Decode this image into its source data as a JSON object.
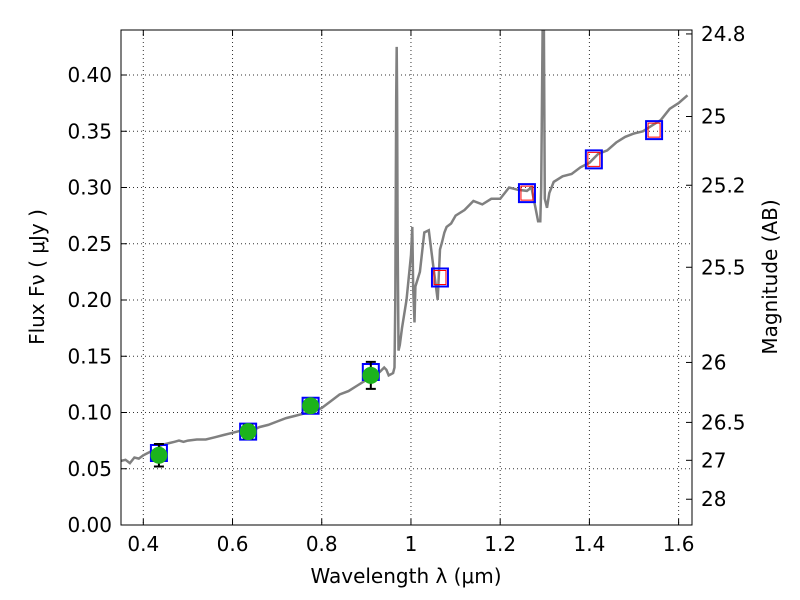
{
  "chart_data": {
    "type": "line",
    "title": "",
    "xlabel": "Wavelength  λ (μm)",
    "ylabel": "Flux  Fν  ( μJy )",
    "ylabel_right": "Magnitude (AB)",
    "xlim": [
      0.35,
      1.63
    ],
    "ylim": [
      0.0,
      0.44
    ],
    "grid": true,
    "x_ticks": [
      0.4,
      0.6,
      0.8,
      1.0,
      1.2,
      1.4,
      1.6
    ],
    "x_tick_labels": [
      "0.4",
      "0.6",
      "0.8",
      "1",
      "1.2",
      "1.4",
      "1.6"
    ],
    "y_ticks": [
      0.0,
      0.05,
      0.1,
      0.15,
      0.2,
      0.25,
      0.3,
      0.35,
      0.4
    ],
    "y_tick_labels": [
      "0.00",
      "0.05",
      "0.10",
      "0.15",
      "0.20",
      "0.25",
      "0.30",
      "0.35",
      "0.40"
    ],
    "right_ticks": [
      {
        "mag": "24.8",
        "flux": 0.4365
      },
      {
        "mag": "25",
        "flux": 0.3631
      },
      {
        "mag": "25.2",
        "flux": 0.302
      },
      {
        "mag": "25.5",
        "flux": 0.2291
      },
      {
        "mag": "26",
        "flux": 0.1445
      },
      {
        "mag": "26.5",
        "flux": 0.0912
      },
      {
        "mag": "27",
        "flux": 0.0575
      },
      {
        "mag": "28",
        "flux": 0.0229
      }
    ],
    "series": [
      {
        "kind": "model_spectrum",
        "color": "#808080",
        "x": [
          0.35,
          0.36,
          0.37,
          0.38,
          0.39,
          0.4,
          0.41,
          0.42,
          0.43,
          0.44,
          0.45,
          0.46,
          0.47,
          0.48,
          0.49,
          0.5,
          0.52,
          0.54,
          0.56,
          0.58,
          0.6,
          0.62,
          0.64,
          0.66,
          0.68,
          0.7,
          0.72,
          0.74,
          0.76,
          0.78,
          0.8,
          0.82,
          0.84,
          0.86,
          0.88,
          0.9,
          0.91,
          0.92,
          0.93,
          0.94,
          0.945,
          0.95,
          0.955,
          0.96,
          0.963,
          0.965,
          0.966,
          0.967,
          0.968,
          0.969,
          0.97,
          0.972,
          0.975,
          0.98,
          0.99,
          1.0,
          1.003,
          1.005,
          1.008,
          1.01,
          1.02,
          1.03,
          1.04,
          1.05,
          1.06,
          1.065,
          1.07,
          1.075,
          1.08,
          1.09,
          1.1,
          1.12,
          1.14,
          1.16,
          1.18,
          1.2,
          1.22,
          1.24,
          1.26,
          1.27,
          1.28,
          1.285,
          1.29,
          1.292,
          1.295,
          1.298,
          1.3,
          1.305,
          1.31,
          1.32,
          1.34,
          1.36,
          1.38,
          1.4,
          1.42,
          1.44,
          1.46,
          1.48,
          1.5,
          1.52,
          1.54,
          1.56,
          1.58,
          1.6,
          1.62
        ],
        "y": [
          0.057,
          0.058,
          0.055,
          0.06,
          0.059,
          0.062,
          0.064,
          0.066,
          0.067,
          0.071,
          0.072,
          0.073,
          0.074,
          0.075,
          0.074,
          0.075,
          0.076,
          0.076,
          0.078,
          0.08,
          0.082,
          0.084,
          0.083,
          0.087,
          0.089,
          0.092,
          0.095,
          0.097,
          0.099,
          0.101,
          0.104,
          0.11,
          0.116,
          0.119,
          0.124,
          0.129,
          0.131,
          0.134,
          0.136,
          0.14,
          0.138,
          0.133,
          0.134,
          0.135,
          0.14,
          0.2,
          0.3,
          0.38,
          0.425,
          0.38,
          0.26,
          0.155,
          0.16,
          0.175,
          0.2,
          0.24,
          0.265,
          0.21,
          0.18,
          0.212,
          0.225,
          0.26,
          0.262,
          0.23,
          0.2,
          0.245,
          0.252,
          0.26,
          0.265,
          0.268,
          0.275,
          0.28,
          0.288,
          0.285,
          0.29,
          0.29,
          0.3,
          0.298,
          0.297,
          0.3,
          0.28,
          0.27,
          0.27,
          0.3,
          0.44,
          0.44,
          0.29,
          0.282,
          0.295,
          0.305,
          0.31,
          0.312,
          0.318,
          0.322,
          0.33,
          0.333,
          0.34,
          0.345,
          0.348,
          0.35,
          0.355,
          0.36,
          0.37,
          0.375,
          0.382
        ]
      },
      {
        "kind": "observed_photometry",
        "marker": "circle",
        "color": "#1cb31c",
        "x": [
          0.435,
          0.635,
          0.775,
          0.91
        ],
        "y": [
          0.062,
          0.083,
          0.106,
          0.133
        ],
        "yerr": [
          0.01,
          0.006,
          0.005,
          0.012
        ]
      },
      {
        "kind": "model_photometry",
        "marker": "square",
        "color": "#0000ff",
        "x": [
          0.435,
          0.635,
          0.775,
          0.91
        ],
        "y": [
          0.064,
          0.083,
          0.106,
          0.136
        ]
      },
      {
        "kind": "predicted_photometry",
        "marker": "square",
        "outer_color": "#0000ff",
        "inner_color": "#ff0000",
        "x": [
          1.065,
          1.26,
          1.41,
          1.545
        ],
        "y": [
          0.22,
          0.295,
          0.325,
          0.351
        ]
      }
    ]
  }
}
